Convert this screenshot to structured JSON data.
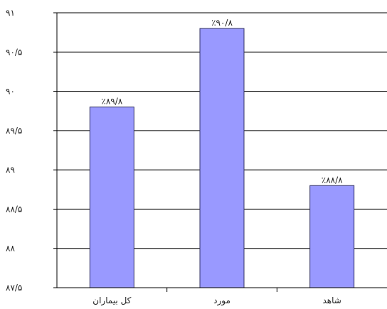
{
  "chart_data": {
    "type": "bar",
    "categories": [
      "کل بیماران",
      "مورد",
      "شاهد"
    ],
    "values": [
      89.8,
      90.8,
      88.8
    ],
    "data_labels": [
      "٪۸۹/۸",
      "٪۹۰/۸",
      "٪۸۸/۸"
    ],
    "ylim": [
      87.5,
      91
    ],
    "yticks": [
      87.5,
      88,
      88.5,
      89,
      89.5,
      90,
      90.5,
      91
    ],
    "ytick_labels": [
      "۸۷/۵",
      "۸۸",
      "۸۸/۵",
      "۸۹",
      "۸۹/۵",
      "۹۰",
      "۹۰/۵",
      "۹۱"
    ],
    "grid": true,
    "legend": "none",
    "colors": {
      "bar_fill": "#9999ff",
      "bar_stroke": "#333366",
      "grid": "#000000",
      "axis": "#000000"
    }
  }
}
